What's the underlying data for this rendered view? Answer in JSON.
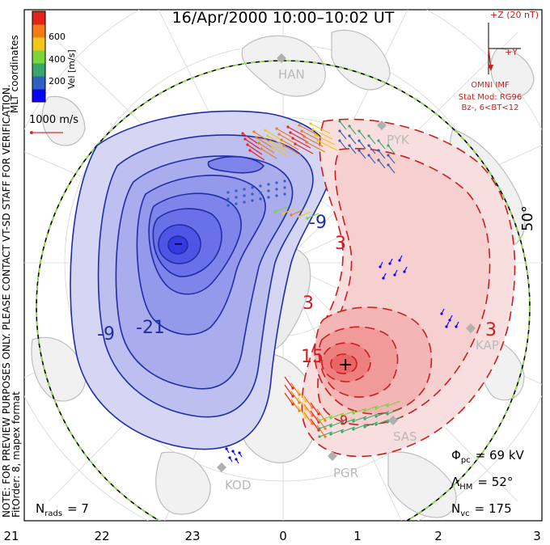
{
  "header": {
    "title": "16/Apr/2000  10:00–10:02 UT"
  },
  "colorbar": {
    "unit_label": "Vel [m/s]",
    "ticks": [
      "600",
      "400",
      "200"
    ],
    "colors": [
      "#0a00ff",
      "#2f5fc0",
      "#37a86a",
      "#7ad43a",
      "#f2c61a",
      "#f37a18",
      "#e4231a"
    ]
  },
  "side_notes": {
    "coord": "MLT coordinates",
    "note": "NOTE: FOR PREVIEW PURPOSES ONLY.  PLEASE CONTACT VT-SD STAFF FOR VERIFICATION.",
    "fit": "FitOrder: 8, mapex format"
  },
  "scale_vector": {
    "label": "1000 m/s"
  },
  "imf": {
    "z_label": "+Z (20 nT)",
    "y_label": "+Y",
    "source": "OMNI IMF",
    "model": "Stat Mod: RG96",
    "condition": "Bz-, 6<BT<12"
  },
  "stations": [
    "HAN",
    "PYK",
    "KAP",
    "SAS",
    "PGR",
    "KOD"
  ],
  "contours": {
    "neg_labels": [
      "-9",
      "-21",
      "-9"
    ],
    "pos_labels": [
      "3",
      "15",
      "3",
      "3",
      "9"
    ],
    "min_marker": "–",
    "max_marker": "+"
  },
  "latitude_label": "50°",
  "stats": {
    "pcp_label": "Φ",
    "pcp_sub": "pc",
    "pcp_value": "=  69 kV",
    "hm_label": "Λ",
    "hm_sub": "HM",
    "hm_value": "=  52°",
    "nvc_label": "N",
    "nvc_sub": "vc",
    "nvc_value": "=  175",
    "nrads_label": "N",
    "nrads_sub": "rads",
    "nrads_value": "=  7"
  },
  "mlt_axis": [
    "21",
    "22",
    "23",
    "0",
    "1",
    "2",
    "3"
  ]
}
